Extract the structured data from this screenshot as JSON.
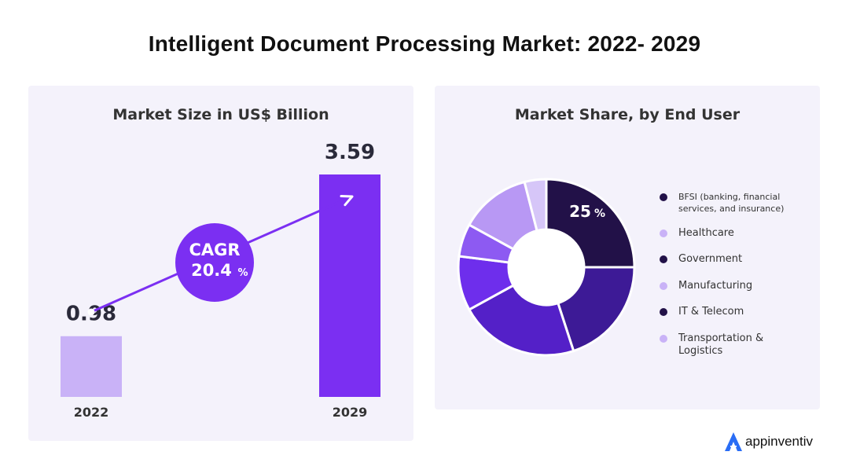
{
  "title": "Intelligent Document Processing Market: 2022- 2029",
  "colors": {
    "panel_bg": "#f4f2fb",
    "bar_2022": "#c9b2f7",
    "bar_2029": "#7b2ff2",
    "cagr_circle": "#7b2ff2",
    "dark": "#221148"
  },
  "left_panel": {
    "title": "Market Size in US$ Billion",
    "cagr_label": "CAGR",
    "cagr_value": "20.4",
    "cagr_unit": "%"
  },
  "right_panel": {
    "title": "Market Share, by End User",
    "center_callout_value": "25",
    "center_callout_unit": "%"
  },
  "chart_data": [
    {
      "type": "bar",
      "title": "Market Size in US$ Billion",
      "categories": [
        "2022",
        "2029"
      ],
      "values": [
        0.98,
        3.59
      ],
      "value_labels": [
        "0.98",
        "3.59"
      ],
      "annotation": "CAGR 20.4 %"
    },
    {
      "type": "pie",
      "title": "Market Share, by End User",
      "donut": true,
      "slices": [
        {
          "label": "BFSI (banking, financial services, and insurance)",
          "value": 25,
          "color": "#221148"
        },
        {
          "label": "Healthcare",
          "value": 20,
          "color": "#3d1a96"
        },
        {
          "label": "Government",
          "value": 22,
          "color": "#5420c8"
        },
        {
          "label": "Manufacturing",
          "value": 10,
          "color": "#6e2eec"
        },
        {
          "label": "IT & Telecom",
          "value": 6,
          "color": "#8d5af2"
        },
        {
          "label": "Transportation & Logistics",
          "value": 13,
          "color": "#b898f4"
        },
        {
          "label": "",
          "value": 4,
          "color": "#d6c6f8"
        }
      ],
      "legend": [
        {
          "label": "BFSI (banking, financial services, and insurance)",
          "color": "#221148"
        },
        {
          "label": "Healthcare",
          "color": "#c9b2f7"
        },
        {
          "label": "Government",
          "color": "#221148"
        },
        {
          "label": "Manufacturing",
          "color": "#c9b2f7"
        },
        {
          "label": "IT & Telecom",
          "color": "#221148"
        },
        {
          "label": "Transportation & Logistics",
          "color": "#c9b2f7"
        }
      ],
      "callout": "25%"
    }
  ],
  "brand": {
    "name": "appinventiv",
    "logo_color": "#2a6df5"
  }
}
